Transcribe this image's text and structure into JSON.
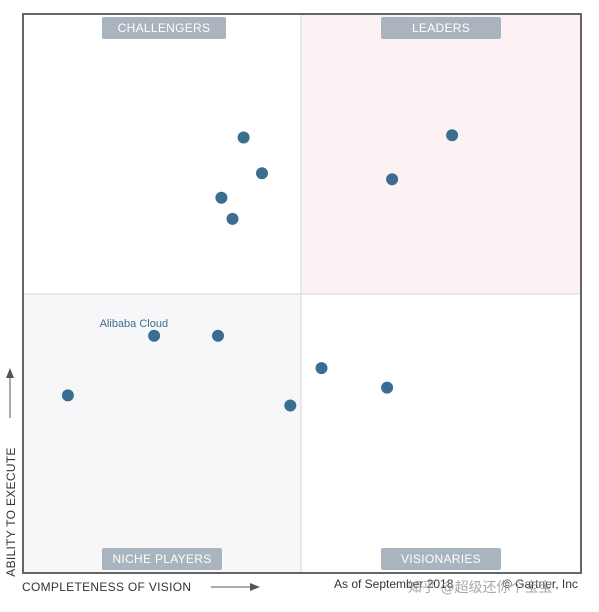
{
  "chart_data": {
    "type": "scatter",
    "title": "",
    "xlabel": "COMPLETENESS OF VISION",
    "ylabel": "ABILITY TO EXECUTE",
    "xlim": [
      0,
      100
    ],
    "ylim": [
      0,
      100
    ],
    "quadrants": {
      "top_left": "CHALLENGERS",
      "top_right": "LEADERS",
      "bottom_left": "NICHE PLAYERS",
      "bottom_right": "VISIONARIES"
    },
    "points": [
      {
        "label": "",
        "x": 77,
        "y": 78.4
      },
      {
        "label": "",
        "x": 66.2,
        "y": 70.5
      },
      {
        "label": "",
        "x": 39.5,
        "y": 78
      },
      {
        "label": "",
        "x": 42.8,
        "y": 71.6
      },
      {
        "label": "",
        "x": 35.5,
        "y": 67.2
      },
      {
        "label": "",
        "x": 37.5,
        "y": 63.4
      },
      {
        "label": "Alibaba Cloud",
        "x": 23.4,
        "y": 42.4
      },
      {
        "label": "",
        "x": 34.9,
        "y": 42.4
      },
      {
        "label": "",
        "x": 53.5,
        "y": 36.6
      },
      {
        "label": "",
        "x": 65.3,
        "y": 33.1
      },
      {
        "label": "",
        "x": 47.9,
        "y": 29.9
      },
      {
        "label": "",
        "x": 7.9,
        "y": 31.7
      }
    ],
    "grid": false,
    "legend": "none",
    "point_color": "#3a6e91",
    "quadrant_label_bg": "#a9b4bf",
    "leaders_bg": "#fcf2f4",
    "niche_bg": "#f7f7f9"
  },
  "footer": {
    "as_of": "As of September 2018",
    "copyright": "© Gartner, Inc",
    "watermark": "知乎 @超级还你个宝宝"
  }
}
